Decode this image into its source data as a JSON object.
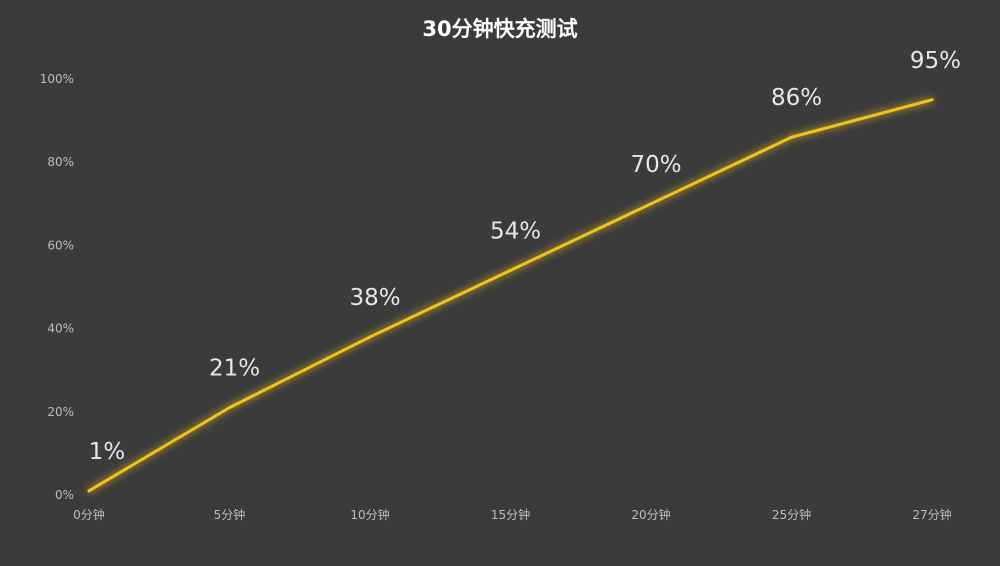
{
  "chart_data": {
    "type": "line",
    "title": "30分钟快充测试",
    "xlabel": "",
    "ylabel": "",
    "categories": [
      "0分钟",
      "5分钟",
      "10分钟",
      "15分钟",
      "20分钟",
      "25分钟",
      "27分钟"
    ],
    "series": [
      {
        "values": [
          1,
          21,
          38,
          54,
          70,
          86,
          95
        ],
        "data_labels": [
          "1%",
          "21%",
          "38%",
          "54%",
          "70%",
          "86%",
          "95%"
        ],
        "color": "#f2c21b"
      }
    ],
    "yticks": [
      {
        "value": 0,
        "label": "0%"
      },
      {
        "value": 20,
        "label": "20%"
      },
      {
        "value": 40,
        "label": "40%"
      },
      {
        "value": 60,
        "label": "60%"
      },
      {
        "value": 80,
        "label": "80%"
      },
      {
        "value": 100,
        "label": "100%"
      }
    ],
    "ylim": [
      0,
      100
    ],
    "grid": false,
    "legend": "none",
    "background": "#3b3b3b"
  }
}
